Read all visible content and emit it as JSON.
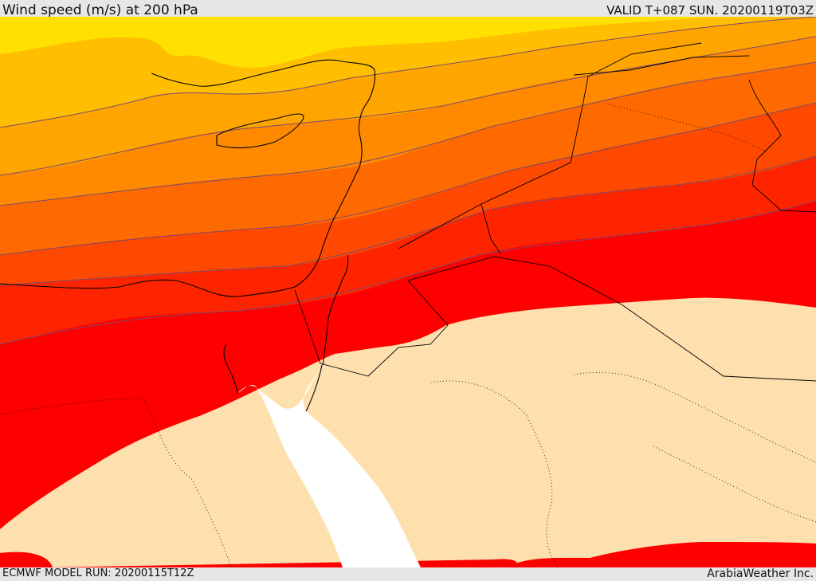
{
  "header": {
    "title": "Wind speed (m/s) at 200 hPa",
    "valid": "VALID T+087 SUN. 20200119T03Z"
  },
  "footer": {
    "model_run": "ECMWF MODEL RUN: 20200115T12Z",
    "brand": "ArabiaWeather Inc."
  },
  "colors": {
    "band_1": "#ffe000",
    "band_2": "#ffbf00",
    "band_3": "#ffa500",
    "band_4": "#ff8a00",
    "band_5": "#ff6a00",
    "band_6": "#ff4800",
    "band_7": "#ff2400",
    "band_8": "#ff0000",
    "low_wind_fill": "#fde0ae",
    "sea": "#ffffff",
    "contour": "#7a4a6e",
    "coastline": "#000000"
  },
  "map": {
    "variable": "wind speed",
    "units": "m/s",
    "level": "200 hPa",
    "region": "Eastern Mediterranean / Levant / Red Sea"
  }
}
